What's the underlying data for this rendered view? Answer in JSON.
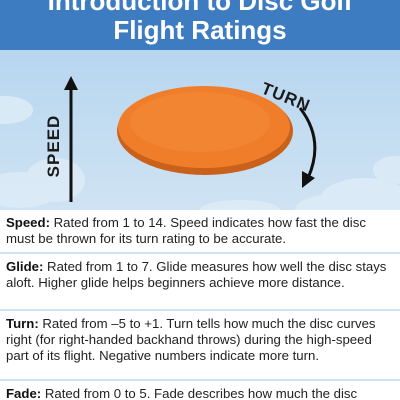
{
  "header": {
    "title_line1": "Introduction to Disc Golf",
    "title_line2": "Flight Ratings"
  },
  "hero": {
    "speed_label": "SPEED",
    "turn_label": "TURN",
    "disc_color": "#f07d2a",
    "sky_color": "#b7d6ef"
  },
  "ratings": [
    {
      "term": "Speed:",
      "text": "Rated from 1 to 14. Speed indicates how fast the disc must be thrown for its turn rating to be accurate."
    },
    {
      "term": "Glide:",
      "text": "Rated from 1 to 7. Glide measures how well the disc stays aloft. Higher glide helps beginners achieve more distance."
    },
    {
      "term": "Turn:",
      "text": "Rated from –5 to +1. Turn tells how much the disc curves right (for right-handed backhand throws) during the high-speed part of its flight. Negative numbers indicate more turn."
    },
    {
      "term": "Fade:",
      "text": "Rated from 0 to 5. Fade describes how much the disc"
    }
  ]
}
